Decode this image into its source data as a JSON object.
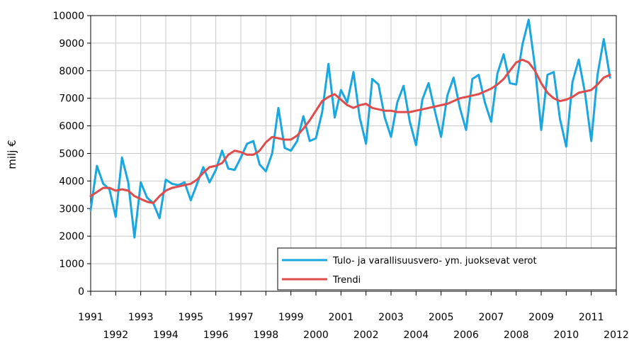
{
  "chart_data": {
    "type": "line",
    "ylabel": "milj €",
    "xlabel": "",
    "ylim": [
      0,
      10000
    ],
    "xlim": [
      1991,
      2012
    ],
    "grid": true,
    "legend_position": "bottom-right",
    "y_ticks": [
      "0",
      "1000",
      "2000",
      "3000",
      "4000",
      "5000",
      "6000",
      "7000",
      "8000",
      "9000",
      "10000"
    ],
    "x_ticks_upper": [
      "1991",
      "1993",
      "1995",
      "1997",
      "1999",
      "2001",
      "2003",
      "2005",
      "2007",
      "2009",
      "2011"
    ],
    "x_ticks_lower": [
      "1992",
      "1994",
      "1996",
      "1998",
      "2000",
      "2002",
      "2004",
      "2006",
      "2008",
      "2010",
      "2012"
    ],
    "x_step": 0.25,
    "series": [
      {
        "name": "Tulo- ja varallisuusvero- ym. juoksevat verot",
        "color": "#1aa7e0",
        "x_start": 1991,
        "values": [
          2950,
          4550,
          3900,
          3700,
          2700,
          4850,
          3950,
          1950,
          3950,
          3400,
          3200,
          2650,
          4050,
          3900,
          3850,
          3950,
          3300,
          3900,
          4500,
          3950,
          4400,
          5100,
          4450,
          4400,
          4850,
          5350,
          5450,
          4600,
          4350,
          5000,
          6650,
          5200,
          5100,
          5450,
          6350,
          5450,
          5550,
          6500,
          8250,
          6300,
          7300,
          6850,
          7950,
          6300,
          5350,
          7700,
          7500,
          6300,
          5600,
          6850,
          7450,
          6150,
          5300,
          6950,
          7550,
          6550,
          5600,
          7100,
          7750,
          6650,
          5850,
          7700,
          7850,
          6850,
          6150,
          7900,
          8600,
          7550,
          7500,
          8950,
          9850,
          8150,
          5850,
          7850,
          7950,
          6250,
          5250,
          7600,
          8400,
          7200,
          5450,
          7850,
          9150,
          7750
        ]
      },
      {
        "name": "Trendi",
        "color": "#e04b4b",
        "x_start": 1991,
        "values": [
          3450,
          3600,
          3750,
          3750,
          3650,
          3700,
          3650,
          3450,
          3350,
          3250,
          3200,
          3450,
          3650,
          3750,
          3800,
          3850,
          3900,
          4050,
          4300,
          4500,
          4550,
          4650,
          4950,
          5100,
          5050,
          4950,
          4950,
          5100,
          5400,
          5600,
          5550,
          5500,
          5500,
          5650,
          5900,
          6200,
          6550,
          6900,
          7050,
          7150,
          6950,
          6750,
          6650,
          6750,
          6800,
          6650,
          6600,
          6550,
          6550,
          6500,
          6500,
          6500,
          6550,
          6600,
          6650,
          6700,
          6750,
          6800,
          6900,
          7000,
          7050,
          7100,
          7150,
          7250,
          7350,
          7500,
          7700,
          8000,
          8300,
          8400,
          8300,
          8000,
          7550,
          7200,
          7000,
          6900,
          6950,
          7050,
          7200,
          7250,
          7300,
          7500,
          7750,
          7850
        ]
      }
    ]
  }
}
